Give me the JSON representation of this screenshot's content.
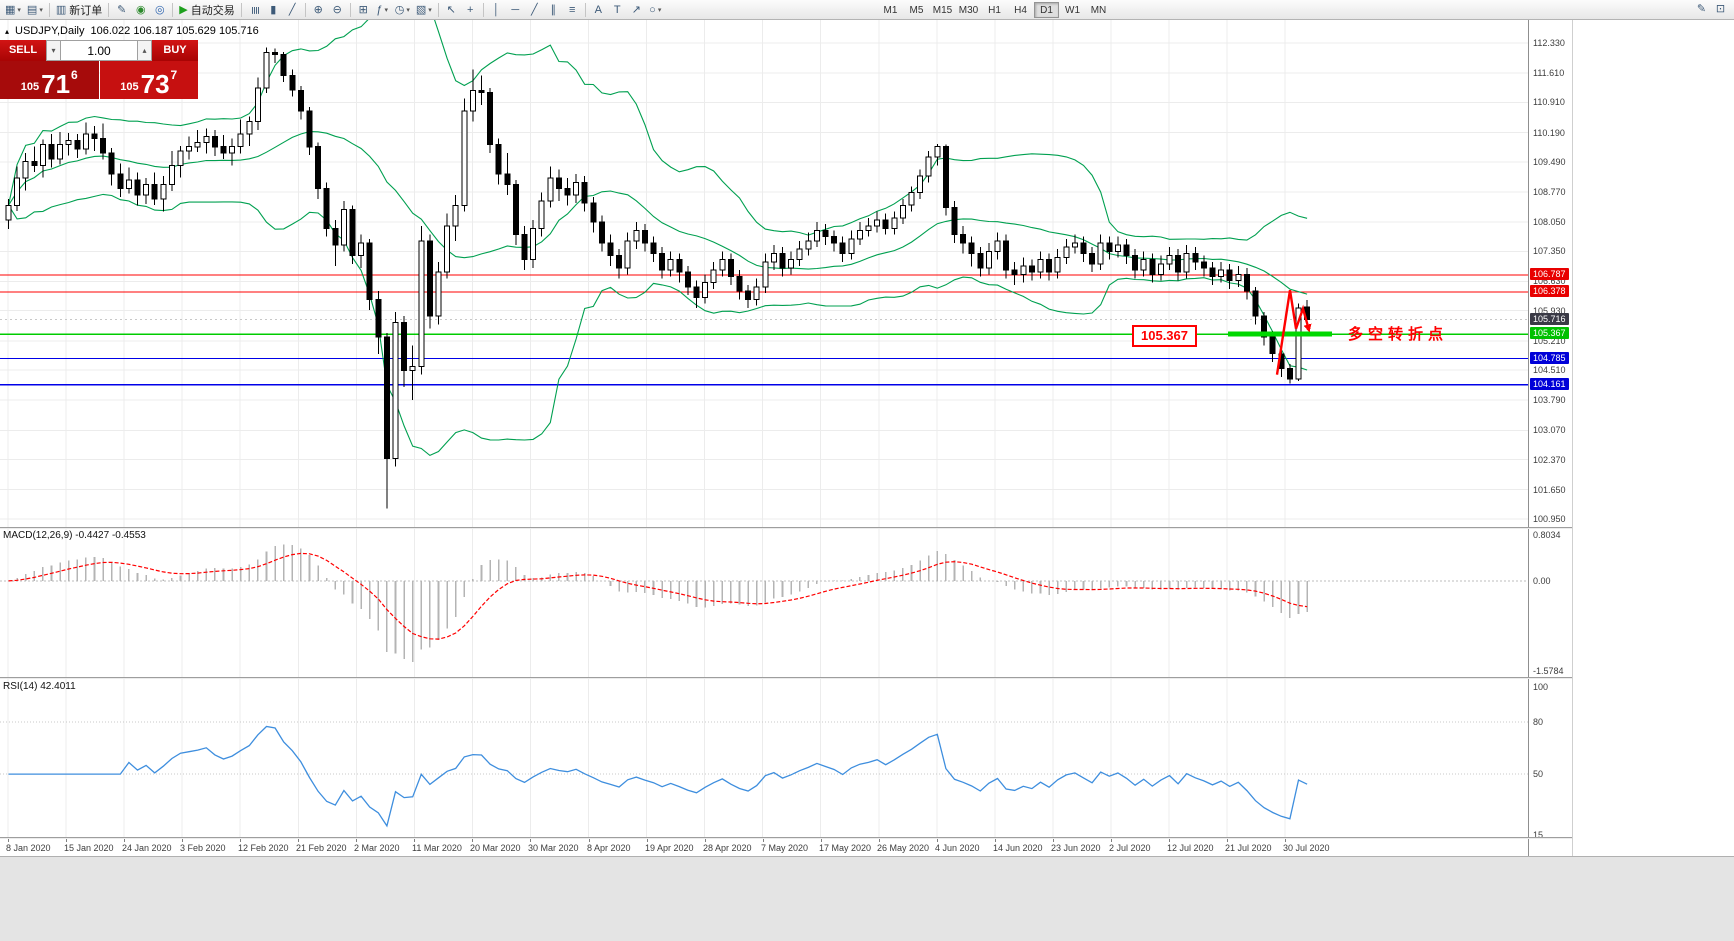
{
  "toolbar": {
    "left_groups": [
      {
        "items": [
          {
            "name": "new-chart-button",
            "icon": "new-chart-icon",
            "glyph": "▦",
            "dropdown": true
          },
          {
            "name": "profiles-button",
            "icon": "profiles-icon",
            "glyph": "▤",
            "dropdown": true
          }
        ]
      },
      {
        "items": [
          {
            "name": "new-order-button",
            "icon": "new-order-icon",
            "glyph": "▥",
            "label": "新订单"
          }
        ]
      },
      {
        "items": [
          {
            "name": "metaeditor-button",
            "icon": "metaeditor-icon",
            "glyph": "✎"
          },
          {
            "name": "history-center-button",
            "icon": "history-center-icon",
            "glyph": "◉",
            "color": "#2c8a2c"
          },
          {
            "name": "global-settings-button",
            "icon": "globe-icon",
            "glyph": "◎",
            "color": "#2c64b0"
          }
        ]
      },
      {
        "items": [
          {
            "name": "auto-trading-button",
            "icon": "play-icon",
            "glyph": "▶",
            "color": "#1ea01e",
            "label": "自动交易"
          }
        ]
      },
      {
        "items": [
          {
            "name": "bar-chart-button",
            "icon": "bar-chart-icon",
            "glyph": "≣",
            "rot": true
          },
          {
            "name": "candlestick-chart-button",
            "icon": "candlestick-icon",
            "glyph": "▮"
          },
          {
            "name": "line-chart-button",
            "icon": "line-chart-icon",
            "glyph": "╱"
          }
        ]
      },
      {
        "items": [
          {
            "name": "zoom-in-button",
            "icon": "zoom-in-icon",
            "glyph": "⊕"
          },
          {
            "name": "zoom-out-button",
            "icon": "zoom-out-icon",
            "glyph": "⊖"
          }
        ]
      },
      {
        "items": [
          {
            "name": "tile-windows-button",
            "icon": "tile-windows-icon",
            "glyph": "⊞"
          },
          {
            "name": "indicators-button",
            "icon": "indicators-icon",
            "glyph": "ƒ",
            "dropdown": true
          },
          {
            "name": "periods-button",
            "icon": "clock-icon",
            "glyph": "◷",
            "dropdown": true
          },
          {
            "name": "templates-button",
            "icon": "template-icon",
            "glyph": "▧",
            "dropdown": true
          }
        ]
      },
      {
        "items": [
          {
            "name": "cursor-button",
            "icon": "cursor-icon",
            "glyph": "↖"
          },
          {
            "name": "crosshair-button",
            "icon": "crosshair-icon",
            "glyph": "+"
          }
        ]
      },
      {
        "items": [
          {
            "name": "vertical-line-button",
            "icon": "vertical-line-icon",
            "glyph": "│"
          },
          {
            "name": "horizontal-line-button",
            "icon": "horizontal-line-icon",
            "glyph": "─"
          },
          {
            "name": "trendline-button",
            "icon": "trendline-icon",
            "glyph": "╱"
          },
          {
            "name": "channel-button",
            "icon": "channel-icon",
            "glyph": "∥"
          },
          {
            "name": "fibonacci-button",
            "icon": "fibonacci-icon",
            "glyph": "≡"
          }
        ]
      },
      {
        "items": [
          {
            "name": "text-button",
            "icon": "text-icon",
            "glyph": "A"
          },
          {
            "name": "label-button",
            "icon": "label-icon",
            "glyph": "T"
          },
          {
            "name": "arrows-button",
            "icon": "arrow-icon",
            "glyph": "↗"
          },
          {
            "name": "shapes-button",
            "icon": "shapes-icon",
            "glyph": "○",
            "dropdown": true
          }
        ]
      }
    ],
    "timeframes": {
      "items": [
        "M1",
        "M5",
        "M15",
        "M30",
        "H1",
        "H4",
        "D1",
        "W1",
        "MN"
      ],
      "active": "D1"
    },
    "right_icons": [
      {
        "name": "draw-button",
        "icon": "pencil-icon",
        "glyph": "✎"
      },
      {
        "name": "snapshot-button",
        "icon": "snapshot-icon",
        "glyph": "⊡"
      }
    ]
  },
  "chart": {
    "title": {
      "symbol_period": "USDJPY,Daily",
      "ohlc": "106.022 106.187 105.629 105.716"
    },
    "price_axis": {
      "min": 100.95,
      "max": 112.33,
      "ticks": [
        "112.330",
        "111.610",
        "110.910",
        "110.190",
        "109.490",
        "108.770",
        "108.050",
        "107.350",
        "106.630",
        "105.930",
        "105.210",
        "104.510",
        "103.790",
        "103.070",
        "102.370",
        "101.650",
        "100.950"
      ]
    },
    "date_axis": [
      "8 Jan 2020",
      "15 Jan 2020",
      "24 Jan 2020",
      "3 Feb 2020",
      "12 Feb 2020",
      "21 Feb 2020",
      "2 Mar 2020",
      "11 Mar 2020",
      "20 Mar 2020",
      "30 Mar 2020",
      "8 Apr 2020",
      "19 Apr 2020",
      "28 Apr 2020",
      "7 May 2020",
      "17 May 2020",
      "26 May 2020",
      "4 Jun 2020",
      "14 Jun 2020",
      "23 Jun 2020",
      "2 Jul 2020",
      "12 Jul 2020",
      "21 Jul 2020",
      "30 Jul 2020"
    ],
    "levels": [
      {
        "price": 106.787,
        "label": "106.787",
        "color": "#ff0000",
        "box_bg": "#e80000"
      },
      {
        "price": 106.378,
        "label": "106.378",
        "color": "#ff0000",
        "box_bg": "#e80000"
      },
      {
        "price": 105.367,
        "label": "105.367",
        "color": "#00cc00",
        "box_bg": "#00c000"
      },
      {
        "price": 104.785,
        "label": "104.785",
        "color": "#0000e8",
        "box_bg": "#0000d8"
      },
      {
        "price": 104.161,
        "label": "104.161",
        "color": "#0000e8",
        "box_bg": "#0000d8"
      }
    ],
    "current_price": {
      "value": 105.716,
      "label": "105.716",
      "box_bg": "#3a3a46",
      "line_color": "#c8c8c8"
    },
    "annotations": {
      "callout_text": "105.367",
      "note_text": "多空转折点",
      "highlight_color": "#00d800",
      "arrow_color": "#ff0000"
    },
    "colors": {
      "grid": "#ececec",
      "bull": "#ffffff",
      "bear": "#000000",
      "outline": "#000000",
      "bands": "#00a050"
    }
  },
  "trade_panel": {
    "sell_label": "SELL",
    "buy_label": "BUY",
    "volume": "1.00",
    "sell_price": {
      "big_figure": "105",
      "pips": "71",
      "point": "6"
    },
    "buy_price": {
      "big_figure": "105",
      "pips": "73",
      "point": "7"
    }
  },
  "macd": {
    "label": "MACD(12,26,9) -0.4427 -0.4553",
    "axis_ticks": [
      "0.8034",
      "0.00",
      "-1.5784"
    ],
    "max": 0.8034,
    "min": -1.5784,
    "colors": {
      "histogram": "#b4b4b4",
      "signal": "#ff0000",
      "zero": "#bcbcbc"
    }
  },
  "rsi": {
    "label": "RSI(14) 42.4011",
    "axis_ticks": [
      "100",
      "80",
      "50",
      "15"
    ],
    "max": 100,
    "min": 15,
    "levels": [
      80,
      50
    ],
    "color": "#3e8ede"
  },
  "chart_data": {
    "type": "candlestick",
    "symbol": "USDJPY",
    "timeframe": "Daily",
    "price_range": [
      100.95,
      112.33
    ],
    "indicators": {
      "bollinger": {
        "period": 20,
        "deviation": 2
      },
      "macd": {
        "fast": 12,
        "slow": 26,
        "signal": 9
      },
      "rsi": {
        "period": 14
      }
    },
    "candles": [
      [
        108.1,
        108.6,
        107.88,
        108.45
      ],
      [
        108.45,
        109.38,
        108.31,
        109.1
      ],
      [
        109.1,
        109.7,
        108.8,
        109.5
      ],
      [
        109.5,
        109.85,
        109.24,
        109.4
      ],
      [
        109.4,
        110.02,
        109.12,
        109.9
      ],
      [
        109.9,
        110.15,
        109.35,
        109.55
      ],
      [
        109.55,
        110.2,
        109.43,
        109.9
      ],
      [
        109.9,
        110.18,
        109.64,
        110.0
      ],
      [
        110.0,
        110.15,
        109.58,
        109.8
      ],
      [
        109.8,
        110.43,
        109.66,
        110.15
      ],
      [
        110.15,
        110.35,
        109.75,
        110.05
      ],
      [
        110.05,
        110.4,
        109.54,
        109.7
      ],
      [
        109.7,
        109.82,
        108.92,
        109.2
      ],
      [
        109.2,
        109.45,
        108.65,
        108.85
      ],
      [
        108.85,
        109.35,
        108.73,
        109.05
      ],
      [
        109.05,
        109.23,
        108.44,
        108.7
      ],
      [
        108.7,
        109.1,
        108.48,
        108.95
      ],
      [
        108.95,
        109.23,
        108.46,
        108.6
      ],
      [
        108.6,
        109.15,
        108.3,
        108.95
      ],
      [
        108.95,
        109.75,
        108.79,
        109.4
      ],
      [
        109.4,
        109.87,
        109.12,
        109.75
      ],
      [
        109.75,
        110.1,
        109.55,
        109.85
      ],
      [
        109.85,
        110.25,
        109.73,
        109.95
      ],
      [
        109.95,
        110.28,
        109.69,
        110.1
      ],
      [
        110.1,
        110.25,
        109.63,
        109.85
      ],
      [
        109.85,
        110.13,
        109.56,
        109.7
      ],
      [
        109.7,
        110.05,
        109.4,
        109.85
      ],
      [
        109.85,
        110.5,
        109.69,
        110.15
      ],
      [
        110.15,
        110.57,
        109.87,
        110.45
      ],
      [
        110.45,
        111.5,
        110.25,
        111.25
      ],
      [
        111.25,
        112.22,
        111.13,
        112.1
      ],
      [
        112.1,
        112.2,
        111.85,
        112.05
      ],
      [
        112.05,
        112.12,
        111.4,
        111.55
      ],
      [
        111.55,
        111.7,
        111.05,
        111.2
      ],
      [
        111.2,
        111.3,
        110.5,
        110.7
      ],
      [
        110.7,
        110.8,
        109.65,
        109.85
      ],
      [
        109.85,
        109.95,
        108.6,
        108.85
      ],
      [
        108.85,
        109.0,
        107.7,
        107.9
      ],
      [
        107.9,
        108.1,
        107.0,
        107.5
      ],
      [
        107.5,
        108.55,
        107.35,
        108.35
      ],
      [
        108.35,
        108.45,
        107.05,
        107.25
      ],
      [
        107.25,
        107.75,
        106.95,
        107.55
      ],
      [
        107.55,
        107.65,
        105.95,
        106.2
      ],
      [
        106.2,
        106.4,
        104.9,
        105.3
      ],
      [
        105.3,
        105.4,
        101.2,
        102.4
      ],
      [
        102.4,
        105.9,
        102.2,
        105.65
      ],
      [
        105.65,
        105.8,
        104.1,
        104.5
      ],
      [
        104.5,
        105.1,
        103.8,
        104.6
      ],
      [
        104.6,
        107.95,
        104.4,
        107.6
      ],
      [
        107.6,
        107.75,
        105.5,
        105.8
      ],
      [
        105.8,
        107.1,
        105.6,
        106.85
      ],
      [
        106.85,
        108.25,
        106.7,
        107.95
      ],
      [
        107.95,
        108.7,
        107.6,
        108.45
      ],
      [
        108.45,
        111.0,
        108.3,
        110.7
      ],
      [
        110.7,
        111.7,
        110.45,
        111.2
      ],
      [
        111.2,
        111.55,
        110.85,
        111.15
      ],
      [
        111.15,
        111.25,
        109.7,
        109.9
      ],
      [
        109.9,
        110.05,
        108.95,
        109.2
      ],
      [
        109.2,
        109.7,
        108.7,
        108.95
      ],
      [
        108.95,
        109.05,
        107.5,
        107.75
      ],
      [
        107.75,
        107.95,
        106.9,
        107.15
      ],
      [
        107.15,
        108.1,
        106.95,
        107.9
      ],
      [
        107.9,
        108.75,
        107.7,
        108.55
      ],
      [
        108.55,
        109.38,
        108.4,
        109.1
      ],
      [
        109.1,
        109.3,
        108.55,
        108.85
      ],
      [
        108.85,
        109.1,
        108.45,
        108.7
      ],
      [
        108.7,
        109.2,
        108.5,
        109.0
      ],
      [
        109.0,
        109.15,
        108.3,
        108.5
      ],
      [
        108.5,
        108.65,
        107.8,
        108.05
      ],
      [
        108.05,
        108.2,
        107.35,
        107.55
      ],
      [
        107.55,
        107.75,
        107.0,
        107.25
      ],
      [
        107.25,
        107.4,
        106.7,
        106.95
      ],
      [
        106.95,
        107.8,
        106.8,
        107.6
      ],
      [
        107.6,
        108.05,
        107.4,
        107.85
      ],
      [
        107.85,
        108.0,
        107.35,
        107.55
      ],
      [
        107.55,
        107.7,
        107.1,
        107.3
      ],
      [
        107.3,
        107.45,
        106.7,
        106.9
      ],
      [
        106.9,
        107.35,
        106.75,
        107.15
      ],
      [
        107.15,
        107.3,
        106.6,
        106.85
      ],
      [
        106.85,
        107.0,
        106.3,
        106.5
      ],
      [
        106.5,
        106.65,
        106.0,
        106.25
      ],
      [
        106.25,
        106.8,
        106.1,
        106.6
      ],
      [
        106.6,
        107.1,
        106.45,
        106.9
      ],
      [
        106.9,
        107.35,
        106.75,
        107.15
      ],
      [
        107.15,
        107.3,
        106.55,
        106.75
      ],
      [
        106.75,
        106.9,
        106.2,
        106.4
      ],
      [
        106.4,
        106.55,
        105.99,
        106.2
      ],
      [
        106.2,
        106.7,
        106.05,
        106.5
      ],
      [
        106.5,
        107.3,
        106.35,
        107.1
      ],
      [
        107.1,
        107.5,
        106.9,
        107.3
      ],
      [
        107.3,
        107.45,
        106.75,
        106.95
      ],
      [
        106.95,
        107.35,
        106.8,
        107.15
      ],
      [
        107.15,
        107.6,
        107.0,
        107.4
      ],
      [
        107.4,
        107.8,
        107.25,
        107.6
      ],
      [
        107.6,
        108.05,
        107.45,
        107.85
      ],
      [
        107.85,
        108.0,
        107.5,
        107.7
      ],
      [
        107.7,
        107.85,
        107.35,
        107.55
      ],
      [
        107.55,
        107.7,
        107.1,
        107.3
      ],
      [
        107.3,
        107.85,
        107.15,
        107.65
      ],
      [
        107.65,
        108.05,
        107.5,
        107.85
      ],
      [
        107.85,
        108.15,
        107.7,
        107.95
      ],
      [
        107.95,
        108.3,
        107.8,
        108.1
      ],
      [
        108.1,
        108.25,
        107.75,
        107.9
      ],
      [
        107.9,
        108.3,
        107.75,
        108.15
      ],
      [
        108.15,
        108.6,
        108.0,
        108.45
      ],
      [
        108.45,
        108.9,
        108.3,
        108.75
      ],
      [
        108.75,
        109.3,
        108.6,
        109.15
      ],
      [
        109.15,
        109.75,
        109.0,
        109.6
      ],
      [
        109.6,
        109.92,
        109.4,
        109.85
      ],
      [
        109.85,
        109.9,
        108.2,
        108.4
      ],
      [
        108.4,
        108.55,
        107.55,
        107.75
      ],
      [
        107.75,
        107.95,
        107.3,
        107.55
      ],
      [
        107.55,
        107.7,
        106.99,
        107.3
      ],
      [
        107.3,
        107.45,
        106.75,
        106.95
      ],
      [
        106.95,
        107.55,
        106.8,
        107.35
      ],
      [
        107.35,
        107.8,
        107.15,
        107.6
      ],
      [
        107.6,
        107.75,
        106.7,
        106.9
      ],
      [
        106.9,
        107.1,
        106.55,
        106.8
      ],
      [
        106.8,
        107.2,
        106.6,
        107.0
      ],
      [
        107.0,
        107.15,
        106.65,
        106.85
      ],
      [
        106.85,
        107.35,
        106.7,
        107.15
      ],
      [
        107.15,
        107.3,
        106.65,
        106.85
      ],
      [
        106.85,
        107.4,
        106.7,
        107.2
      ],
      [
        107.2,
        107.65,
        107.05,
        107.45
      ],
      [
        107.45,
        107.75,
        107.3,
        107.55
      ],
      [
        107.55,
        107.7,
        107.1,
        107.3
      ],
      [
        107.3,
        107.45,
        106.85,
        107.05
      ],
      [
        107.05,
        107.75,
        106.9,
        107.55
      ],
      [
        107.55,
        107.7,
        107.15,
        107.35
      ],
      [
        107.35,
        107.7,
        107.2,
        107.5
      ],
      [
        107.5,
        107.65,
        107.05,
        107.25
      ],
      [
        107.25,
        107.4,
        106.7,
        106.9
      ],
      [
        106.9,
        107.35,
        106.75,
        107.15
      ],
      [
        107.15,
        107.3,
        106.6,
        106.8
      ],
      [
        106.8,
        107.25,
        106.65,
        107.05
      ],
      [
        107.05,
        107.45,
        106.9,
        107.25
      ],
      [
        107.25,
        107.4,
        106.65,
        106.85
      ],
      [
        106.85,
        107.5,
        106.7,
        107.3
      ],
      [
        107.3,
        107.45,
        106.9,
        107.1
      ],
      [
        107.1,
        107.25,
        106.75,
        106.95
      ],
      [
        106.95,
        107.1,
        106.55,
        106.75
      ],
      [
        106.75,
        107.1,
        106.6,
        106.9
      ],
      [
        106.9,
        107.05,
        106.45,
        106.65
      ],
      [
        106.65,
        107.0,
        106.5,
        106.8
      ],
      [
        106.8,
        106.95,
        106.2,
        106.4
      ],
      [
        106.4,
        106.5,
        105.6,
        105.8
      ],
      [
        105.8,
        105.9,
        105.1,
        105.3
      ],
      [
        105.3,
        105.45,
        104.7,
        104.9
      ],
      [
        104.9,
        105.05,
        104.35,
        104.55
      ],
      [
        104.55,
        104.65,
        104.19,
        104.3
      ],
      [
        104.3,
        106.1,
        104.25,
        106.0
      ],
      [
        106.02,
        106.19,
        105.63,
        105.72
      ]
    ]
  }
}
